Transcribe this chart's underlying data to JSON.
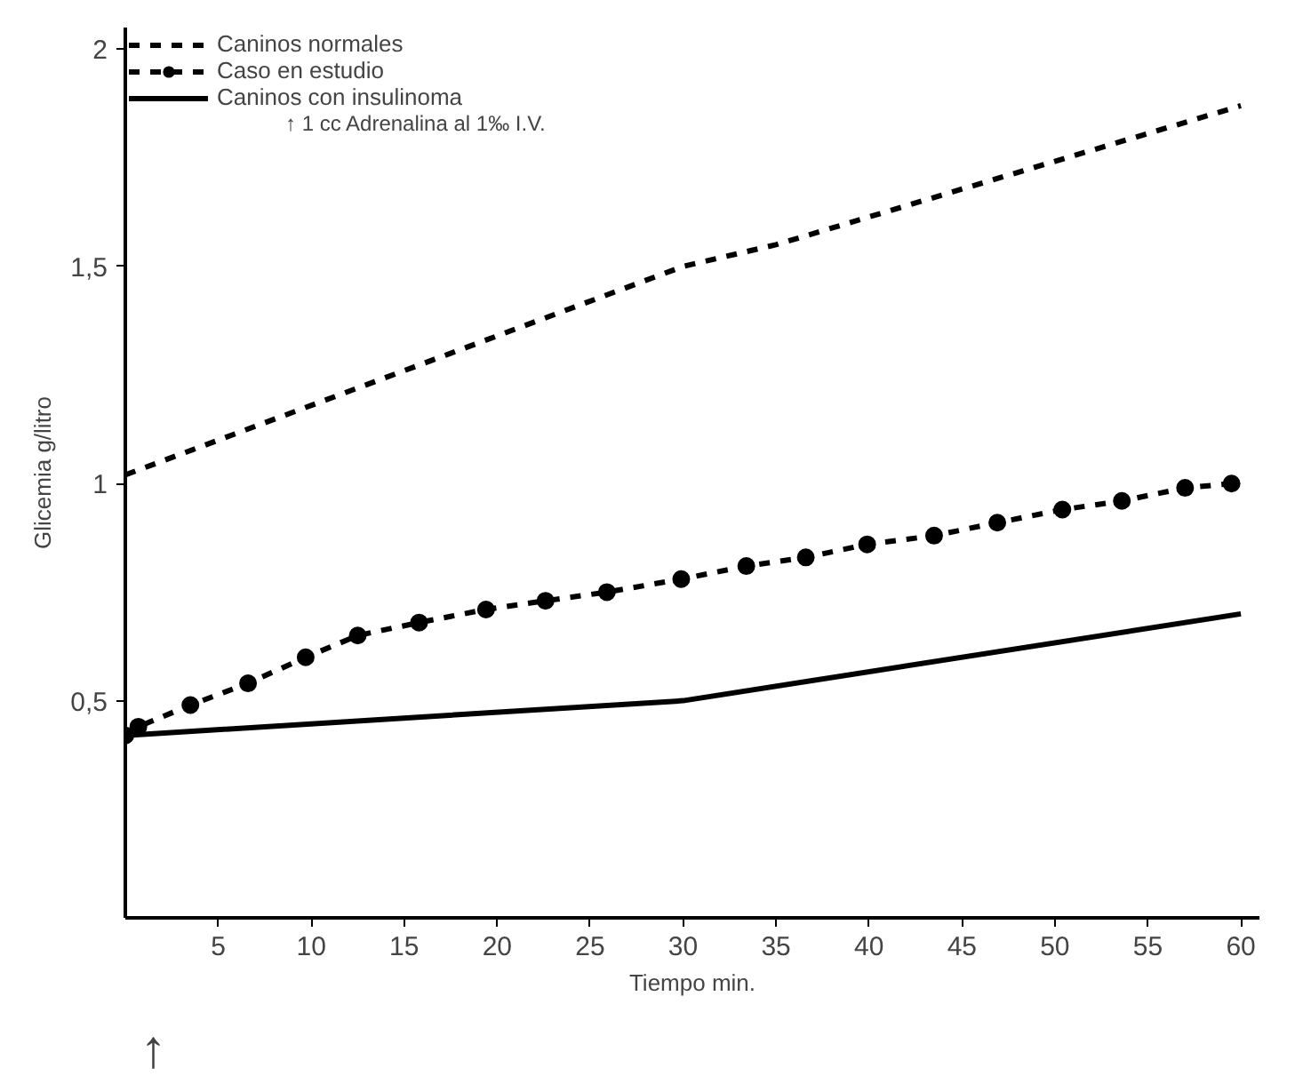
{
  "chart_data": {
    "type": "line",
    "xlabel": "Tiempo min.",
    "ylabel": "Glicemia g/litro",
    "xlim": [
      0,
      61
    ],
    "ylim": [
      0,
      2.05
    ],
    "xticks": [
      5,
      10,
      15,
      20,
      25,
      30,
      35,
      40,
      45,
      50,
      55,
      60
    ],
    "yticks": [
      {
        "value": 0.5,
        "label": "0,5"
      },
      1,
      {
        "value": 1.5,
        "label": "1,5"
      },
      2
    ],
    "grid": false,
    "legend": "top left",
    "series": [
      {
        "name": "Caninos normales",
        "color": "#000000",
        "line_style": "dashed",
        "marker": "none",
        "x": [
          0,
          30,
          35,
          60
        ],
        "values": [
          1.02,
          1.5,
          1.55,
          1.87
        ]
      },
      {
        "name": "Caso en estudio",
        "color": "#000000",
        "line_style": "dashed",
        "marker": "circle",
        "x": [
          0,
          0.7,
          3.5,
          6.6,
          9.7,
          12.5,
          15.8,
          19.4,
          22.6,
          25.9,
          29.9,
          33.4,
          36.6,
          39.9,
          43.5,
          46.9,
          50.4,
          53.6,
          57.0,
          59.5
        ],
        "values": [
          0.42,
          0.44,
          0.49,
          0.54,
          0.6,
          0.65,
          0.68,
          0.71,
          0.73,
          0.75,
          0.78,
          0.81,
          0.83,
          0.86,
          0.88,
          0.91,
          0.94,
          0.96,
          0.99,
          1.0
        ]
      },
      {
        "name": "Caninos con insulinoma",
        "color": "#000000",
        "line_style": "solid",
        "marker": "none",
        "x": [
          0,
          30,
          60
        ],
        "values": [
          0.42,
          0.5,
          0.7
        ]
      }
    ],
    "annotations": [
      "↑ 1 cc Adrenalina al 1‰ I.V.",
      "↑"
    ]
  }
}
